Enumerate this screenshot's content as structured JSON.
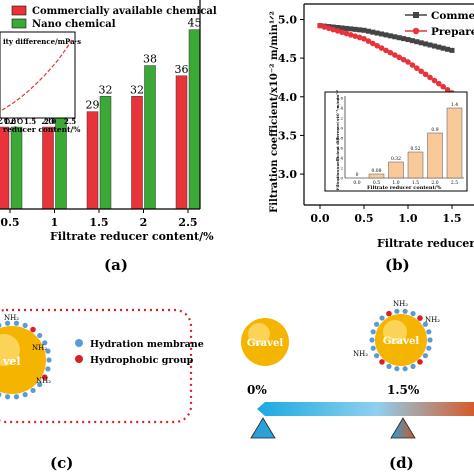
{
  "panels": {
    "a": "(a)",
    "b": "(b)",
    "c": "(c)",
    "d": "(d)"
  },
  "chart_data": [
    {
      "type": "bar",
      "panel": "(a)",
      "xlabel": "Filtrate reducer content/%",
      "categories": [
        "0.5",
        "1",
        "1.5",
        "2",
        "2.5"
      ],
      "series": [
        {
          "name": "Commercially available chemical",
          "values": [
            26,
            26,
            29,
            32,
            36
          ],
          "color": "#e8333a"
        },
        {
          "name": "Nano chemical",
          "values": [
            26,
            28,
            32,
            38,
            45
          ],
          "color": "#3aa935"
        }
      ],
      "ylim": [
        10,
        50
      ],
      "legend": "top",
      "inset": {
        "type": "line",
        "ylabel": "ity difference/mPa·s",
        "xlabel": "reducer content/%",
        "x_ticks": [
          "1.0",
          "1.5",
          "2.0",
          "2.5"
        ],
        "trend": "rising curve",
        "color": "#e8333a"
      }
    },
    {
      "type": "line",
      "panel": "(b)",
      "ylabel": "Filtration coefficient/x10⁻² m/min¹ᐟ²",
      "xlabel": "Filtrate reducer content",
      "x": [
        0.0,
        0.5,
        1.0,
        1.5
      ],
      "x_ticks": [
        "0.0",
        "0.5",
        "1.0",
        "1.5"
      ],
      "y_ticks": [
        "3.0",
        "3.5",
        "4.0",
        "4.5",
        "5.0"
      ],
      "ylim": [
        2.6,
        5.2
      ],
      "series": [
        {
          "name": "Commerc",
          "color": "#444444",
          "y": [
            4.92,
            4.86,
            4.74,
            4.6
          ]
        },
        {
          "name": "Prepare",
          "color": "#e8333a",
          "y": [
            4.92,
            4.75,
            4.45,
            4.05
          ]
        }
      ],
      "legend": "top-right",
      "inset": {
        "type": "bar",
        "ylabel": "Filtration coefficient difference/×10⁻² m/min¹ᐟ²",
        "xlabel": "Filtrate reducer content/%",
        "categories": [
          "0.0",
          "0.5",
          "1.0",
          "1.5",
          "2.0",
          "2.5"
        ],
        "values": [
          0,
          0.08,
          0.32,
          0.52,
          0.9,
          1.4
        ],
        "labels": [
          "0",
          "0.08",
          "0.32",
          "0.52",
          "0.9",
          "1.4"
        ],
        "y_ticks": [
          "0.0",
          "0.2",
          "0.4",
          "0.6",
          "0.8",
          "1.0",
          "1.2",
          "1.4",
          "1.6"
        ],
        "ylim": [
          0,
          1.6
        ],
        "color": "#f9c89b"
      }
    }
  ],
  "diagram_c": {
    "particle": "vel",
    "group_labels": [
      "NH₂",
      "NH₂",
      "NH₂"
    ],
    "legend": [
      {
        "label": "Hydration membrane",
        "color": "#5b9bd5"
      },
      {
        "label": "Hydrophobic group",
        "color": "#d9202a"
      }
    ]
  },
  "diagram_d": {
    "particle_left": "Gravel",
    "particle_right": "Gravel",
    "group_labels": [
      "NH₂",
      "NH₂",
      "NH₂"
    ],
    "scale_labels": [
      "0%",
      "1.5%"
    ]
  }
}
